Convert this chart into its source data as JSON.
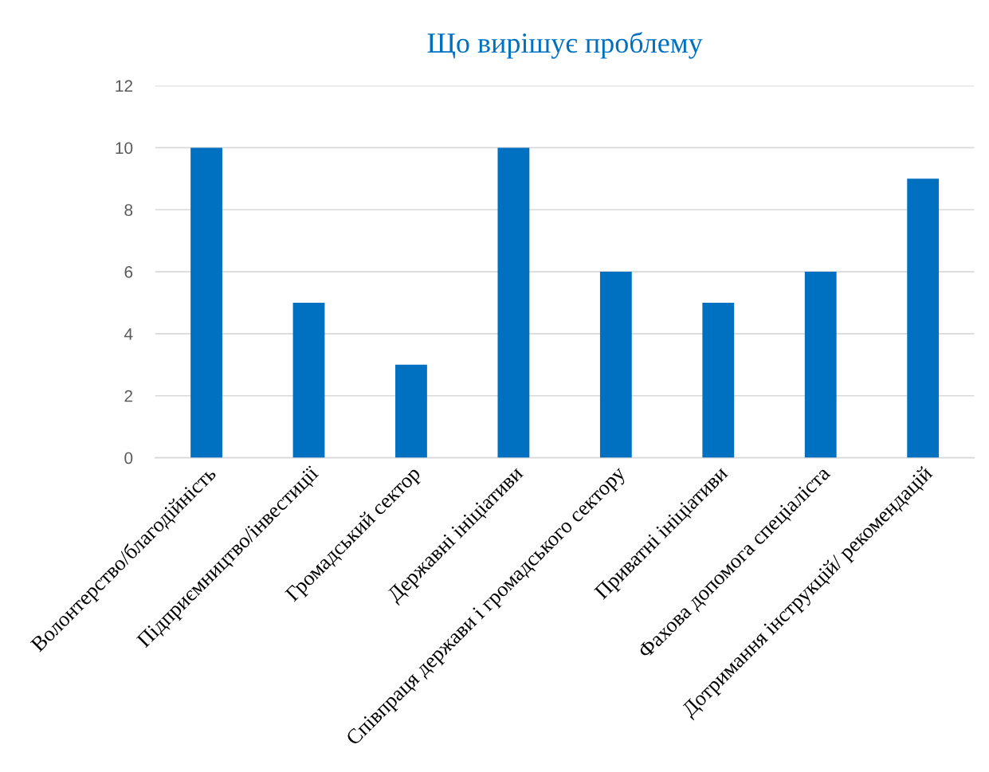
{
  "chart_data": {
    "type": "bar",
    "title": "Що вирішує проблему",
    "categories": [
      "Волонтерство/благодійність",
      "Підприємництво/інвестиції",
      "Громадський сектор",
      "Державні ініціативи",
      "Співпраця держави і громадського сектору",
      "Приватні ініціативи",
      "Фахова допомога спеціаліста",
      "Дотримання інструкцій/ рекомендацій"
    ],
    "values": [
      10,
      5,
      3,
      10,
      6,
      5,
      6,
      9
    ],
    "color": "#0070c0",
    "ylim": [
      0,
      12
    ],
    "yticks": [
      0,
      2,
      4,
      6,
      8,
      10,
      12
    ],
    "grid": "y",
    "legend": false
  }
}
